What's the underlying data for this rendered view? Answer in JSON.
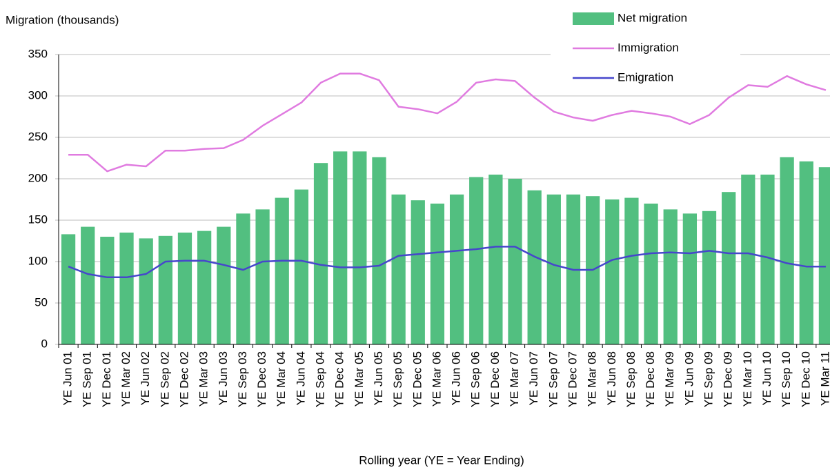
{
  "chart_data": {
    "type": "bar-line",
    "title": "Migration (thousands)",
    "xlabel": "Rolling year (YE = Year Ending)",
    "categories": [
      "YE Jun 01",
      "YE Sep 01",
      "YE Dec 01",
      "YE Mar 02",
      "YE Jun 02",
      "YE Sep 02",
      "YE Dec 02",
      "YE Mar 03",
      "YE Jun 03",
      "YE Sep 03",
      "YE Dec 03",
      "YE Mar 04",
      "YE Jun 04",
      "YE Sep 04",
      "YE Dec 04",
      "YE Mar 05",
      "YE Jun 05",
      "YE Sep 05",
      "YE Dec 05",
      "YE Mar 06",
      "YE Jun 06",
      "YE Sep 06",
      "YE Dec 06",
      "YE Mar 07",
      "YE Jun 07",
      "YE Sep 07",
      "YE Dec 07",
      "YE Mar 08",
      "YE Jun 08",
      "YE Sep 08",
      "YE Dec 08",
      "YE Mar 09",
      "YE Jun 09",
      "YE Sep 09",
      "YE Dec 09",
      "YE Mar 10",
      "YE Jun 10",
      "YE Sep 10",
      "YE Dec 10",
      "YE Mar 11"
    ],
    "series": [
      {
        "name": "Net migration",
        "type": "bar",
        "color": "#52bf80",
        "values": [
          133,
          142,
          130,
          135,
          128,
          131,
          135,
          137,
          142,
          158,
          163,
          177,
          187,
          219,
          233,
          233,
          226,
          181,
          174,
          170,
          181,
          202,
          205,
          200,
          186,
          181,
          181,
          179,
          175,
          177,
          170,
          163,
          158,
          161,
          184,
          205,
          205,
          226,
          221,
          214
        ]
      },
      {
        "name": "Immigration",
        "type": "line",
        "color": "#e07be0",
        "values": [
          229,
          229,
          209,
          217,
          215,
          234,
          234,
          236,
          237,
          247,
          264,
          278,
          292,
          316,
          327,
          327,
          319,
          287,
          284,
          279,
          293,
          316,
          320,
          318,
          298,
          281,
          274,
          270,
          277,
          282,
          279,
          275,
          266,
          277,
          298,
          313,
          311,
          324,
          314,
          307
        ]
      },
      {
        "name": "Emigration",
        "type": "line",
        "color": "#4646cc",
        "values": [
          94,
          85,
          81,
          81,
          85,
          100,
          101,
          101,
          96,
          90,
          100,
          101,
          101,
          96,
          93,
          93,
          95,
          107,
          109,
          111,
          113,
          115,
          118,
          118,
          106,
          96,
          90,
          90,
          102,
          107,
          110,
          111,
          110,
          113,
          110,
          110,
          105,
          98,
          94,
          94
        ]
      }
    ],
    "ylim": [
      0,
      350
    ],
    "yticks": [
      0,
      50,
      100,
      150,
      200,
      250,
      300,
      350
    ],
    "grid": true
  }
}
